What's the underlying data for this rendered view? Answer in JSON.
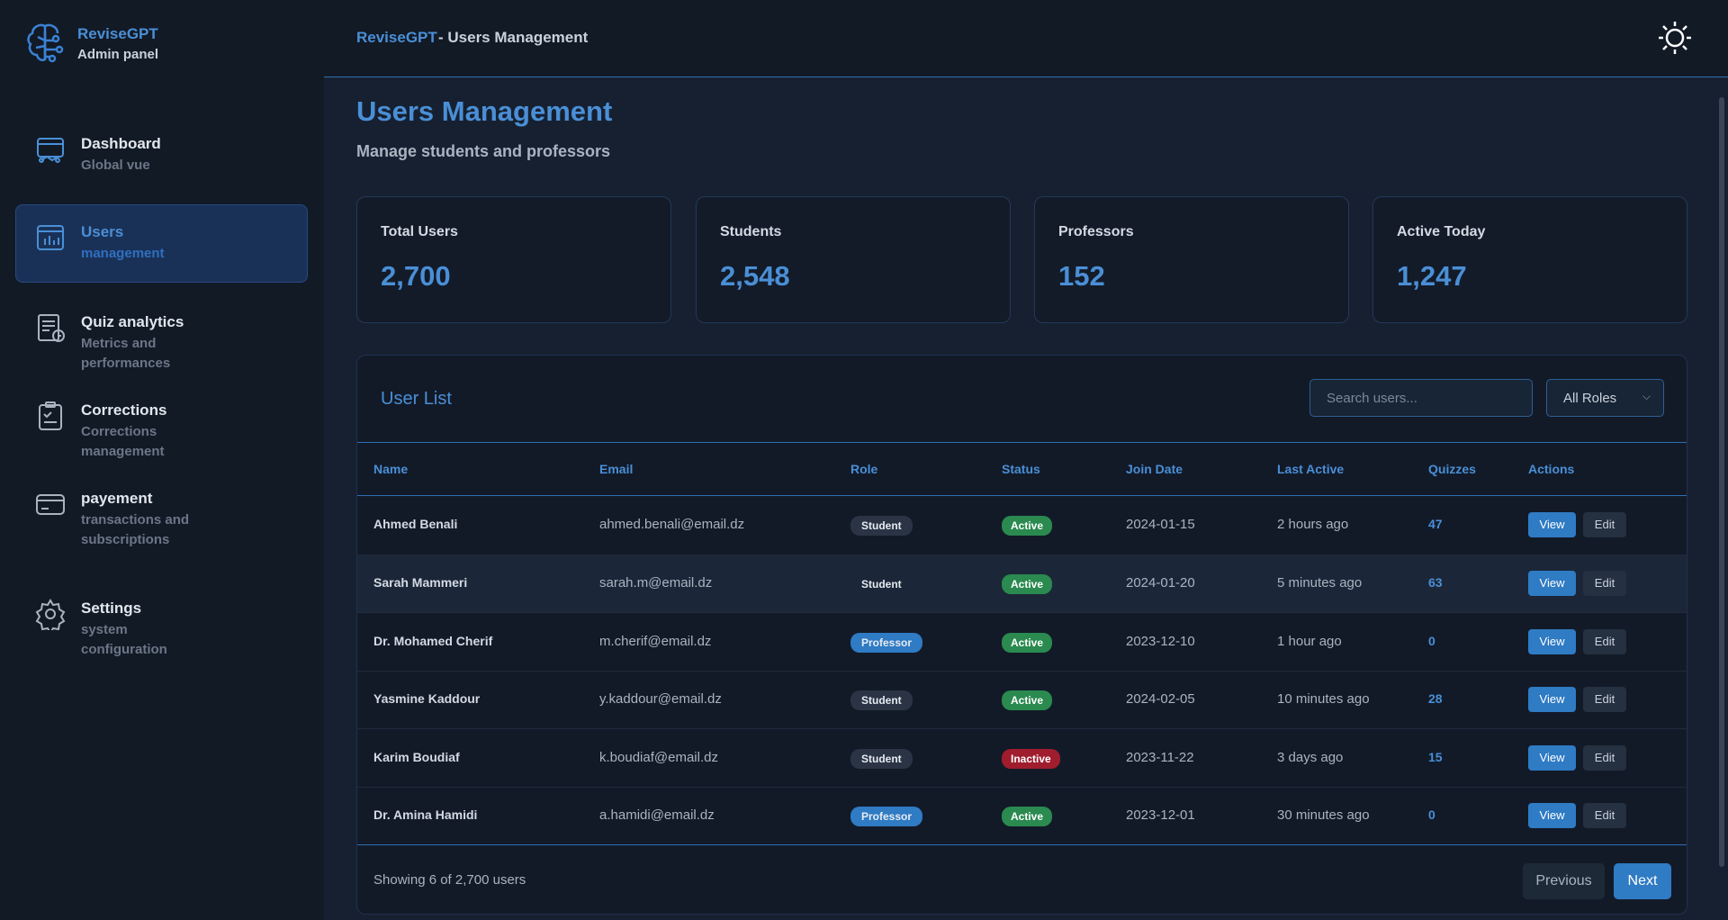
{
  "sidebar": {
    "brand": "ReviseGPT",
    "brand_sub": "Admin panel",
    "nav": [
      {
        "label": "Dashboard",
        "sub": "Global vue"
      },
      {
        "label": "Users",
        "sub": "management"
      },
      {
        "label": "Quiz analytics",
        "sub": "Metrics and performances"
      },
      {
        "label": "Corrections",
        "sub": "Corrections management"
      },
      {
        "label": "payement",
        "sub": "transactions and subscriptions"
      },
      {
        "label": "Settings",
        "sub": "system configuration"
      }
    ]
  },
  "header": {
    "brand": "ReviseGPT",
    "title": "- Users Management"
  },
  "page": {
    "title": "Users Management",
    "subtitle": "Manage students and professors",
    "stats": [
      {
        "label": "Total Users",
        "value": "2,700"
      },
      {
        "label": "Students",
        "value": "2,548"
      },
      {
        "label": "Professors",
        "value": "152"
      },
      {
        "label": "Active Today",
        "value": "1,247"
      }
    ]
  },
  "table": {
    "title": "User List",
    "search_placeholder": "Search users...",
    "role_filter": "All Roles",
    "columns": [
      "Name",
      "Email",
      "Role",
      "Status",
      "Join Date",
      "Last Active",
      "Quizzes",
      "Actions"
    ],
    "actions": [
      "View",
      "Edit"
    ],
    "rows": [
      [
        "Ahmed Benali",
        "ahmed.benali@email.dz",
        "Student",
        "Active",
        "2024-01-15",
        "2 hours ago",
        47
      ],
      [
        "Sarah Mammeri",
        "sarah.m@email.dz",
        "Student",
        "Active",
        "2024-01-20",
        "5 minutes ago",
        63
      ],
      [
        "Dr. Mohamed Cherif",
        "m.cherif@email.dz",
        "Professor",
        "Active",
        "2023-12-10",
        "1 hour ago",
        0
      ],
      [
        "Yasmine Kaddour",
        "y.kaddour@email.dz",
        "Student",
        "Active",
        "2024-02-05",
        "10 minutes ago",
        28
      ],
      [
        "Karim Boudiaf",
        "k.boudiaf@email.dz",
        "Student",
        "Inactive",
        "2023-11-22",
        "3 days ago",
        15
      ],
      [
        "Dr. Amina Hamidi",
        "a.hamidi@email.dz",
        "Professor",
        "Active",
        "2023-12-01",
        "30 minutes ago",
        0
      ]
    ],
    "footer": "Showing 6 of 2,700 users",
    "previous": "Previous",
    "next": "Next"
  }
}
